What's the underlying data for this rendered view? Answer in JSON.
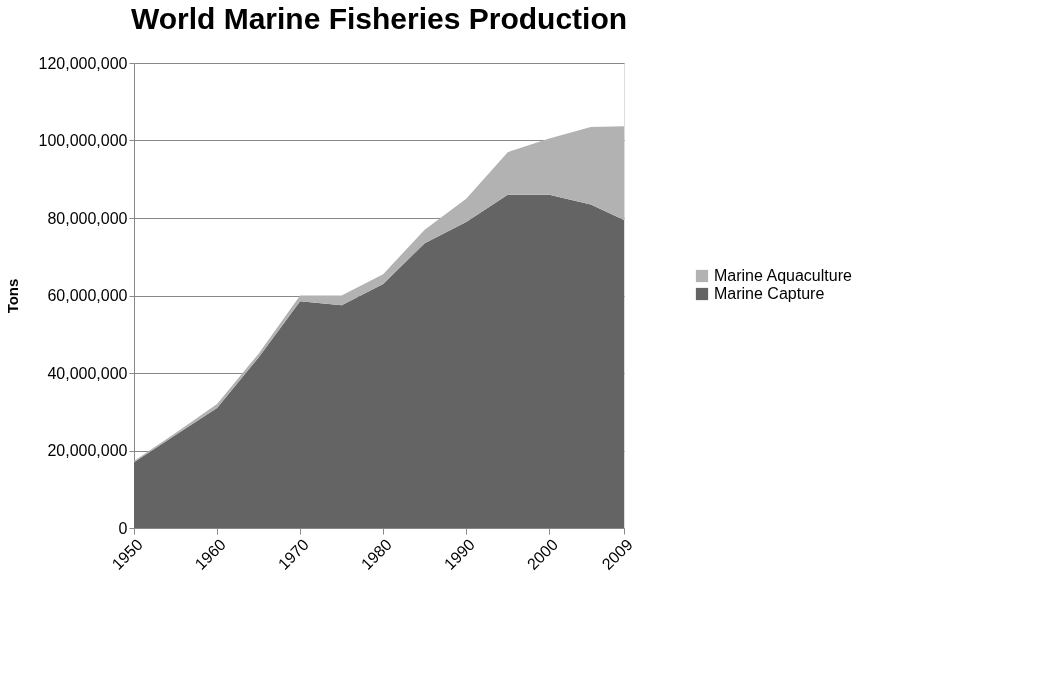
{
  "chart_data": {
    "type": "area",
    "title": "World Marine Fisheries Production",
    "ylabel": "Tons",
    "stacked": true,
    "x": [
      1950,
      1955,
      1960,
      1965,
      1970,
      1975,
      1980,
      1985,
      1990,
      1995,
      2000,
      2005,
      2009
    ],
    "series": [
      {
        "name": "Marine Capture",
        "color": "#646464",
        "values": [
          17000000,
          24000000,
          31000000,
          44000000,
          58500000,
          57500000,
          63000000,
          73500000,
          79000000,
          86000000,
          86000000,
          83500000,
          79500000
        ]
      },
      {
        "name": "Marine Aquaculture",
        "color": "#b2b2b2",
        "values": [
          300000,
          500000,
          1000000,
          1000000,
          1500000,
          2500000,
          2500000,
          3500000,
          6000000,
          11000000,
          14500000,
          20000000,
          24200000
        ]
      }
    ],
    "xlim": [
      1950,
      2009
    ],
    "xticks": [
      1950,
      1960,
      1970,
      1980,
      1990,
      2000,
      2009
    ],
    "ylim": [
      0,
      120000000
    ],
    "yticks": [
      0,
      {
        "value": 20000000,
        "label": "20,000,000"
      },
      {
        "value": 40000000,
        "label": "40,000,000"
      },
      {
        "value": 60000000,
        "label": "60,000,000"
      },
      {
        "value": 80000000,
        "label": "80,000,000"
      },
      {
        "value": 100000000,
        "label": "100,000,000"
      },
      {
        "value": 120000000,
        "label": "120,000,000"
      }
    ],
    "grid": "y",
    "legend": "right"
  }
}
